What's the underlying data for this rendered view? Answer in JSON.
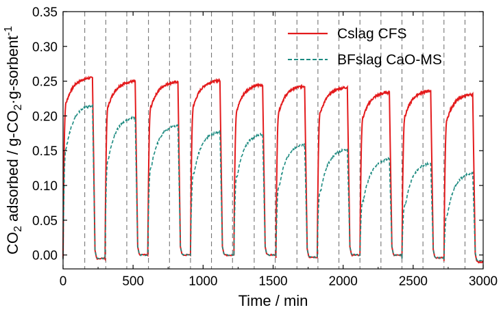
{
  "chart_data": {
    "type": "line",
    "xlabel": "Time / min",
    "ylabel_parts": {
      "p1": "CO",
      "sub1": "2",
      "p2": " adsorbed / g-CO",
      "sub2": "2",
      "p3": "·g-sorbent",
      "sup": "-1"
    },
    "xlim": [
      0,
      3000
    ],
    "ylim": [
      -0.02,
      0.35
    ],
    "xticks": [
      0,
      500,
      1000,
      1500,
      2000,
      2500,
      3000
    ],
    "xtick_labels": [
      "0",
      "500",
      "1000",
      "1500",
      "2000",
      "2500",
      "3000"
    ],
    "yticks": [
      0.0,
      0.05,
      0.1,
      0.15,
      0.2,
      0.25,
      0.3,
      0.35
    ],
    "ytick_labels": [
      "0.00",
      "0.05",
      "0.10",
      "0.15",
      "0.20",
      "0.25",
      "0.30",
      "0.35"
    ],
    "cycle_boundaries": [
      155,
      305,
      455,
      610,
      760,
      910,
      1060,
      1210,
      1365,
      1515,
      1670,
      1820,
      1970,
      2120,
      2270,
      2420,
      2570,
      2720,
      2870
    ],
    "legend_position": "top-right",
    "series": [
      {
        "name": "Cslag CFS",
        "color": "#e31a1c",
        "style": "solid",
        "cycles": [
          {
            "start": 0,
            "end": 210,
            "peak": 0.255,
            "min": -0.005
          },
          {
            "start": 300,
            "end": 515,
            "peak": 0.25,
            "min": 0.0
          },
          {
            "start": 605,
            "end": 820,
            "peak": 0.249,
            "min": 0.0
          },
          {
            "start": 910,
            "end": 1120,
            "peak": 0.251,
            "min": 0.0
          },
          {
            "start": 1220,
            "end": 1425,
            "peak": 0.245,
            "min": 0.0
          },
          {
            "start": 1520,
            "end": 1725,
            "peak": 0.243,
            "min": -0.003
          },
          {
            "start": 1815,
            "end": 2030,
            "peak": 0.241,
            "min": 0.0
          },
          {
            "start": 2120,
            "end": 2330,
            "peak": 0.234,
            "min": 0.0
          },
          {
            "start": 2420,
            "end": 2625,
            "peak": 0.236,
            "min": -0.004
          },
          {
            "start": 2720,
            "end": 2925,
            "peak": 0.231,
            "min": -0.01
          }
        ]
      },
      {
        "name": "BFslag CaO-MS",
        "color": "#1b8a80",
        "style": "dashed",
        "cycles": [
          {
            "start": 0,
            "end": 210,
            "peak": 0.215,
            "min": -0.005
          },
          {
            "start": 300,
            "end": 515,
            "peak": 0.198,
            "min": 0.0
          },
          {
            "start": 605,
            "end": 820,
            "peak": 0.186,
            "min": 0.0
          },
          {
            "start": 910,
            "end": 1120,
            "peak": 0.177,
            "min": 0.0
          },
          {
            "start": 1220,
            "end": 1425,
            "peak": 0.174,
            "min": 0.0
          },
          {
            "start": 1520,
            "end": 1725,
            "peak": 0.159,
            "min": -0.003
          },
          {
            "start": 1815,
            "end": 2030,
            "peak": 0.152,
            "min": 0.0
          },
          {
            "start": 2120,
            "end": 2330,
            "peak": 0.138,
            "min": 0.0
          },
          {
            "start": 2420,
            "end": 2625,
            "peak": 0.132,
            "min": -0.004
          },
          {
            "start": 2720,
            "end": 2925,
            "peak": 0.118,
            "min": -0.008
          }
        ]
      }
    ]
  }
}
